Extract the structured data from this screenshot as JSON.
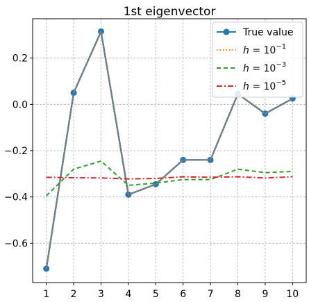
{
  "chart_data": {
    "type": "line",
    "title": "1st eigenvector",
    "xlabel": "",
    "ylabel": "",
    "x": [
      1,
      2,
      3,
      4,
      5,
      6,
      7,
      8,
      9,
      10
    ],
    "xlim": [
      0.5,
      10.5
    ],
    "ylim": [
      -0.77,
      0.37
    ],
    "xticks": [
      "1",
      "2",
      "3",
      "4",
      "5",
      "6",
      "7",
      "8",
      "9",
      "10"
    ],
    "yticks": [
      {
        "value": 0.2,
        "label": "0.2"
      },
      {
        "value": 0.0,
        "label": "0.0"
      },
      {
        "value": -0.2,
        "label": "−0.2"
      },
      {
        "value": -0.4,
        "label": "−0.4"
      },
      {
        "value": -0.6,
        "label": "−0.6"
      }
    ],
    "grid": true,
    "legend_position": "top-right",
    "series": [
      {
        "name": "True value",
        "style": "solid-marker",
        "color": "#1f77b4",
        "values": [
          -0.71,
          0.05,
          0.315,
          -0.39,
          -0.345,
          -0.24,
          -0.24,
          0.045,
          -0.04,
          0.025
        ]
      },
      {
        "name": "h = 10^-1",
        "legend_base": "h = 10",
        "legend_exp": "−1",
        "style": "dotted",
        "color": "#ff7f0e",
        "values": [
          -0.71,
          0.05,
          0.315,
          -0.39,
          -0.345,
          -0.24,
          -0.24,
          0.045,
          -0.04,
          0.025
        ]
      },
      {
        "name": "h = 10^-3",
        "legend_base": "h = 10",
        "legend_exp": "−3",
        "style": "dashed",
        "color": "#2ca02c",
        "values": [
          -0.395,
          -0.28,
          -0.245,
          -0.35,
          -0.34,
          -0.325,
          -0.325,
          -0.28,
          -0.295,
          -0.29
        ]
      },
      {
        "name": "h = 10^-5",
        "legend_base": "h = 10",
        "legend_exp": "−5",
        "style": "dashdot",
        "color": "#d62728",
        "values": [
          -0.315,
          -0.317,
          -0.318,
          -0.322,
          -0.32,
          -0.313,
          -0.315,
          -0.313,
          -0.318,
          -0.313
        ]
      }
    ],
    "overlay_color": "#7f7f7f"
  }
}
